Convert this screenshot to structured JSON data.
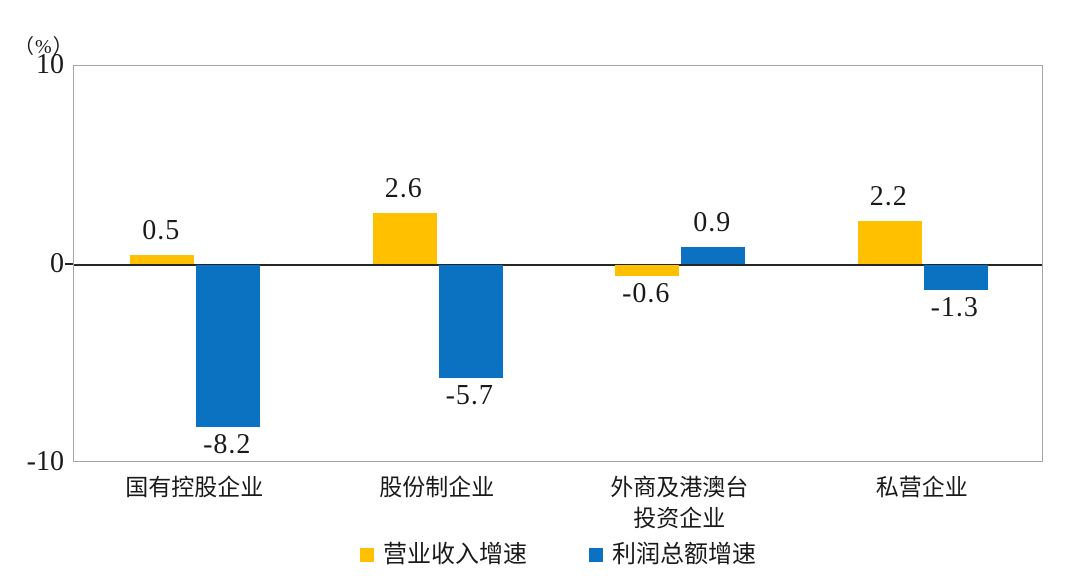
{
  "chart_data": {
    "type": "bar",
    "title": "",
    "unit_label": "（%）",
    "categories": [
      "国有控股企业",
      "股份制企业",
      "外商及港澳台\n投资企业",
      "私营企业"
    ],
    "series": [
      {
        "name": "营业收入增速",
        "color": "#FFC000",
        "values": [
          0.5,
          2.6,
          -0.6,
          2.2
        ]
      },
      {
        "name": "利润总额增速",
        "color": "#0B72C2",
        "values": [
          -8.2,
          -5.7,
          0.9,
          -1.3
        ]
      }
    ],
    "ylim": [
      -10,
      10
    ],
    "yticks": [
      10,
      0,
      -10
    ],
    "grid": false,
    "legend_position": "bottom",
    "value_labels_shown": true
  },
  "colors": {
    "plot_border": "#a6a6a6",
    "zero_line": "#262626",
    "text": "#1a1a1a"
  }
}
